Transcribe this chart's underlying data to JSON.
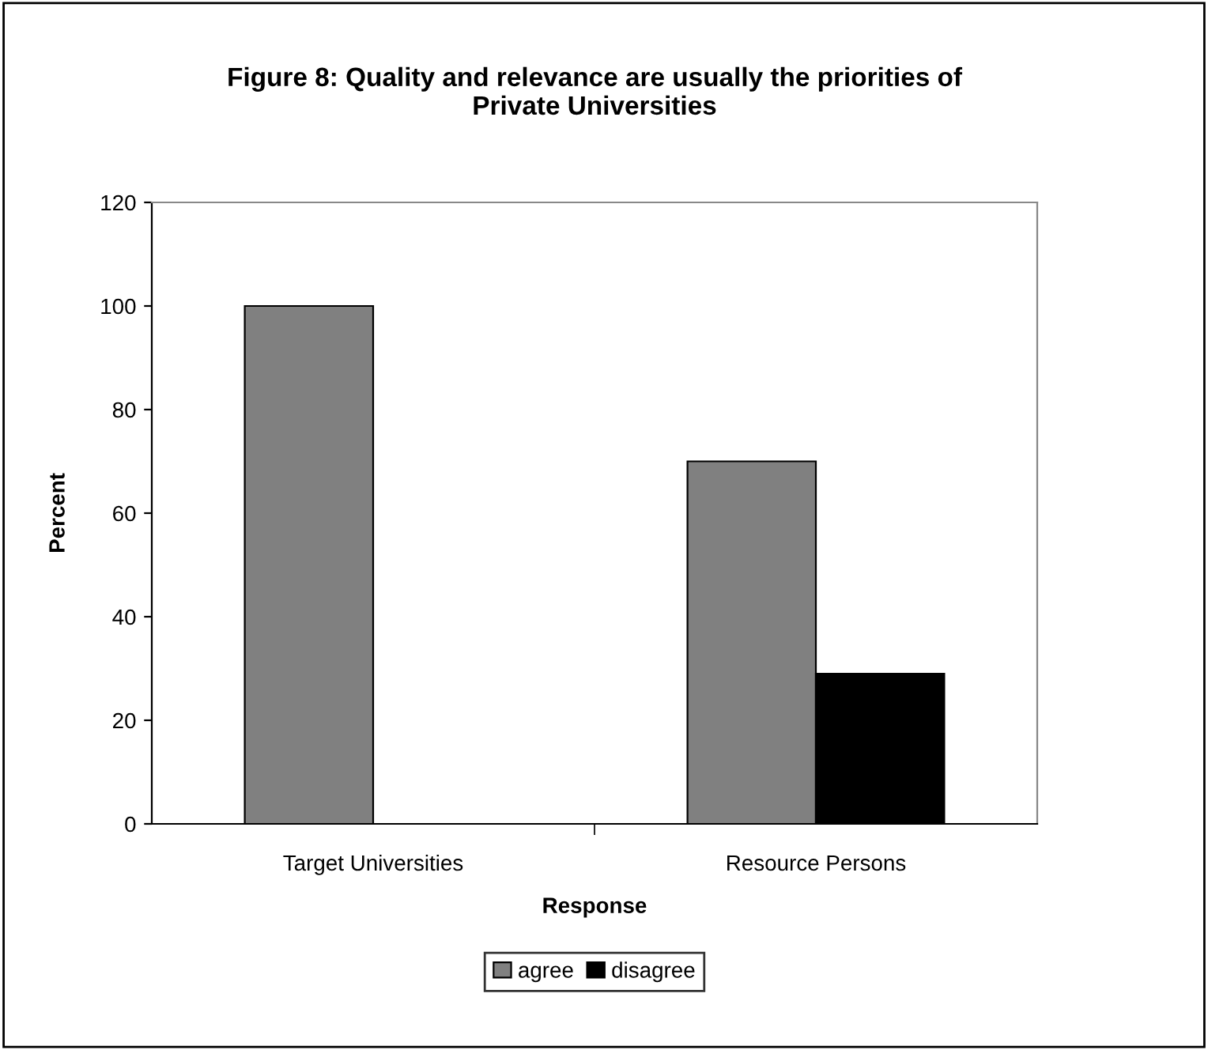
{
  "chart_data": {
    "type": "bar",
    "title": "Figure 8: Quality and relevance are usually the priorities of\nPrivate Universities",
    "xlabel": "Response",
    "ylabel": "Percent",
    "categories": [
      "Target Universities",
      "Resource Persons"
    ],
    "series": [
      {
        "name": "agree",
        "color": "#808080",
        "values": [
          100,
          70
        ]
      },
      {
        "name": "disagree",
        "color": "#000000",
        "values": [
          0,
          29
        ]
      }
    ],
    "ylim": [
      0,
      120
    ],
    "yticks": [
      0,
      20,
      40,
      60,
      80,
      100,
      120
    ],
    "grid": false,
    "legend": "bottom"
  }
}
